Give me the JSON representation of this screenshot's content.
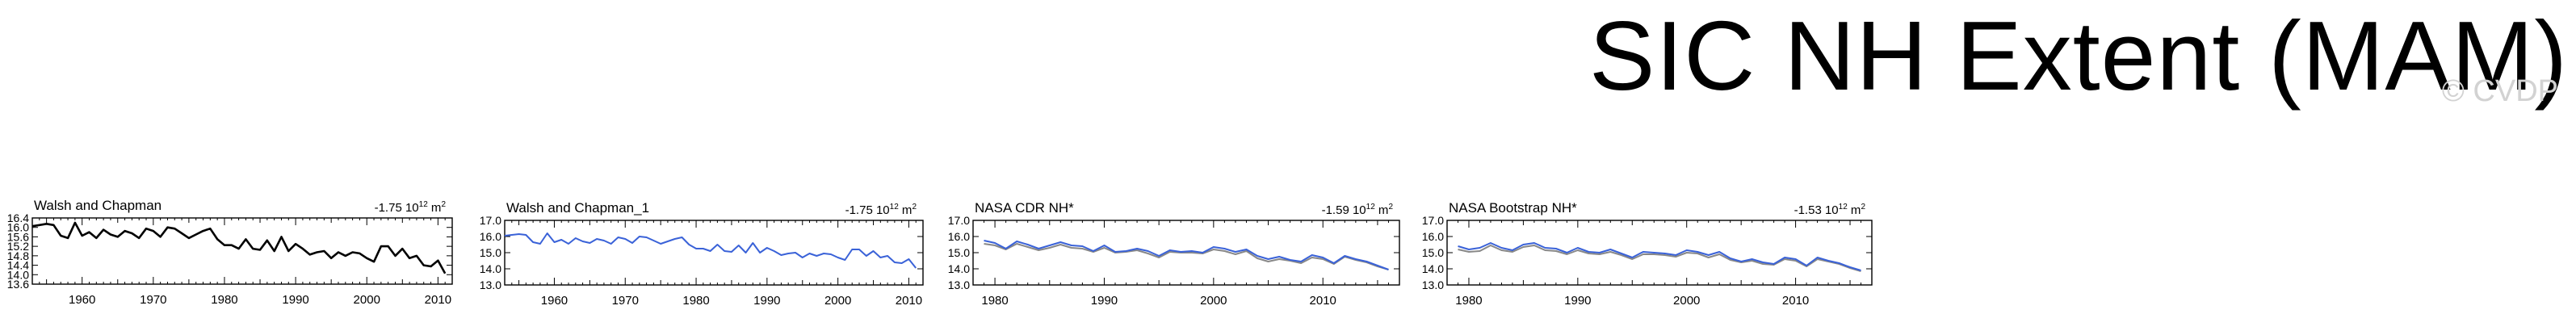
{
  "title": "SIC NH Extent (MAM)",
  "watermark": "© CVDP",
  "colors": {
    "reference": "#000000",
    "primary": "#3a62d8",
    "secondary": "#888888"
  },
  "chart_data": [
    {
      "type": "line",
      "panel_title": "Walsh and Chapman",
      "trend_value": "-1.75",
      "trend_unit": "10",
      "trend_exp": "12",
      "trend_unit_suffix": "m",
      "trend_unit_exp": "2",
      "xlim": [
        1953,
        2012
      ],
      "ylim": [
        13.6,
        16.4
      ],
      "xticks": [
        1960,
        1970,
        1980,
        1990,
        2000,
        2010
      ],
      "yticks": [
        "13.6",
        "14.0",
        "14.4",
        "14.8",
        "15.2",
        "15.6",
        "16.0",
        "16.4"
      ],
      "series": [
        {
          "color": "#000000",
          "x": [
            1953,
            1954,
            1955,
            1956,
            1957,
            1958,
            1959,
            1960,
            1961,
            1962,
            1963,
            1964,
            1965,
            1966,
            1967,
            1968,
            1969,
            1970,
            1971,
            1972,
            1973,
            1974,
            1975,
            1976,
            1977,
            1978,
            1979,
            1980,
            1981,
            1982,
            1983,
            1984,
            1985,
            1986,
            1987,
            1988,
            1989,
            1990,
            1991,
            1992,
            1993,
            1994,
            1995,
            1996,
            1997,
            1998,
            1999,
            2000,
            2001,
            2002,
            2003,
            2004,
            2005,
            2006,
            2007,
            2008,
            2009,
            2010,
            2011
          ],
          "values": [
            16.05,
            16.1,
            16.15,
            16.1,
            15.65,
            15.55,
            16.2,
            15.65,
            15.8,
            15.55,
            15.9,
            15.7,
            15.6,
            15.85,
            15.75,
            15.55,
            15.95,
            15.85,
            15.6,
            16.0,
            15.95,
            15.75,
            15.55,
            15.7,
            15.85,
            15.95,
            15.5,
            15.25,
            15.25,
            15.1,
            15.5,
            15.1,
            15.05,
            15.45,
            15.0,
            15.6,
            15.0,
            15.3,
            15.1,
            14.85,
            14.95,
            15.0,
            14.7,
            14.95,
            14.8,
            14.95,
            14.9,
            14.7,
            14.55,
            15.2,
            15.2,
            14.8,
            15.1,
            14.7,
            14.8,
            14.4,
            14.35,
            14.6,
            14.05
          ]
        }
      ]
    },
    {
      "type": "line",
      "panel_title": "Walsh and Chapman_1",
      "trend_value": "-1.75",
      "trend_unit": "10",
      "trend_exp": "12",
      "trend_unit_suffix": "m",
      "trend_unit_exp": "2",
      "xlim": [
        1953,
        2012
      ],
      "ylim": [
        13.0,
        17.0
      ],
      "xticks": [
        1960,
        1970,
        1980,
        1990,
        2000,
        2010
      ],
      "yticks": [
        "13.0",
        "14.0",
        "15.0",
        "16.0",
        "17.0"
      ],
      "series": [
        {
          "color": "#3a62d8",
          "x": [
            1953,
            1954,
            1955,
            1956,
            1957,
            1958,
            1959,
            1960,
            1961,
            1962,
            1963,
            1964,
            1965,
            1966,
            1967,
            1968,
            1969,
            1970,
            1971,
            1972,
            1973,
            1974,
            1975,
            1976,
            1977,
            1978,
            1979,
            1980,
            1981,
            1982,
            1983,
            1984,
            1985,
            1986,
            1987,
            1988,
            1989,
            1990,
            1991,
            1992,
            1993,
            1994,
            1995,
            1996,
            1997,
            1998,
            1999,
            2000,
            2001,
            2002,
            2003,
            2004,
            2005,
            2006,
            2007,
            2008,
            2009,
            2010,
            2011
          ],
          "values": [
            16.05,
            16.1,
            16.15,
            16.1,
            15.65,
            15.55,
            16.2,
            15.65,
            15.8,
            15.55,
            15.9,
            15.7,
            15.6,
            15.85,
            15.75,
            15.55,
            15.95,
            15.85,
            15.6,
            16.0,
            15.95,
            15.75,
            15.55,
            15.7,
            15.85,
            15.95,
            15.5,
            15.25,
            15.25,
            15.1,
            15.5,
            15.1,
            15.05,
            15.45,
            15.0,
            15.6,
            15.0,
            15.3,
            15.1,
            14.85,
            14.95,
            15.0,
            14.7,
            14.95,
            14.8,
            14.95,
            14.9,
            14.7,
            14.55,
            15.2,
            15.2,
            14.8,
            15.1,
            14.7,
            14.8,
            14.4,
            14.35,
            14.6,
            14.05
          ]
        }
      ]
    },
    {
      "type": "line",
      "panel_title": "NASA CDR NH*",
      "trend_value": "-1.59",
      "trend_unit": "10",
      "trend_exp": "12",
      "trend_unit_suffix": "m",
      "trend_unit_exp": "2",
      "xlim": [
        1978,
        2017
      ],
      "ylim": [
        13.0,
        17.0
      ],
      "xticks": [
        1980,
        1990,
        2000,
        2010
      ],
      "yticks": [
        "13.0",
        "14.0",
        "15.0",
        "16.0",
        "17.0"
      ],
      "series": [
        {
          "color": "#888888",
          "x": [
            1979,
            1980,
            1981,
            1982,
            1983,
            1984,
            1985,
            1986,
            1987,
            1988,
            1989,
            1990,
            1991,
            1992,
            1993,
            1994,
            1995,
            1996,
            1997,
            1998,
            1999,
            2000,
            2001,
            2002,
            2003,
            2004,
            2005,
            2006,
            2007,
            2008,
            2009,
            2010,
            2011,
            2012,
            2013,
            2014,
            2015,
            2016
          ],
          "values": [
            15.55,
            15.45,
            15.2,
            15.55,
            15.35,
            15.15,
            15.3,
            15.5,
            15.3,
            15.25,
            15.05,
            15.3,
            15.0,
            15.05,
            15.15,
            14.95,
            14.7,
            15.05,
            15.0,
            15.0,
            14.95,
            15.2,
            15.1,
            14.9,
            15.1,
            14.65,
            14.45,
            14.6,
            14.5,
            14.35,
            14.7,
            14.6,
            14.3,
            14.75,
            14.55,
            14.4,
            14.15,
            13.95
          ]
        },
        {
          "color": "#3a62d8",
          "x": [
            1979,
            1980,
            1981,
            1982,
            1983,
            1984,
            1985,
            1986,
            1987,
            1988,
            1989,
            1990,
            1991,
            1992,
            1993,
            1994,
            1995,
            1996,
            1997,
            1998,
            1999,
            2000,
            2001,
            2002,
            2003,
            2004,
            2005,
            2006,
            2007,
            2008,
            2009,
            2010,
            2011,
            2012,
            2013,
            2014,
            2015,
            2016
          ],
          "values": [
            15.75,
            15.6,
            15.25,
            15.7,
            15.5,
            15.25,
            15.45,
            15.65,
            15.45,
            15.4,
            15.1,
            15.45,
            15.05,
            15.1,
            15.25,
            15.1,
            14.8,
            15.15,
            15.05,
            15.1,
            15.0,
            15.35,
            15.25,
            15.05,
            15.2,
            14.8,
            14.6,
            14.75,
            14.55,
            14.45,
            14.85,
            14.7,
            14.35,
            14.8,
            14.6,
            14.45,
            14.2,
            13.95
          ]
        }
      ]
    },
    {
      "type": "line",
      "panel_title": "NASA Bootstrap NH*",
      "trend_value": "-1.53",
      "trend_unit": "10",
      "trend_exp": "12",
      "trend_unit_suffix": "m",
      "trend_unit_exp": "2",
      "xlim": [
        1978,
        2017
      ],
      "ylim": [
        13.0,
        17.0
      ],
      "xticks": [
        1980,
        1990,
        2000,
        2010
      ],
      "yticks": [
        "13.0",
        "14.0",
        "15.0",
        "16.0",
        "17.0"
      ],
      "series": [
        {
          "color": "#888888",
          "x": [
            1979,
            1980,
            1981,
            1982,
            1983,
            1984,
            1985,
            1986,
            1987,
            1988,
            1989,
            1990,
            1991,
            1992,
            1993,
            1994,
            1995,
            1996,
            1997,
            1998,
            1999,
            2000,
            2001,
            2002,
            2003,
            2004,
            2005,
            2006,
            2007,
            2008,
            2009,
            2010,
            2011,
            2012,
            2013,
            2014,
            2015,
            2016
          ],
          "values": [
            15.2,
            15.05,
            15.1,
            15.45,
            15.15,
            15.05,
            15.35,
            15.45,
            15.15,
            15.1,
            14.9,
            15.15,
            14.95,
            14.9,
            15.05,
            14.85,
            14.6,
            14.9,
            14.9,
            14.85,
            14.75,
            15.0,
            14.95,
            14.7,
            14.9,
            14.55,
            14.4,
            14.5,
            14.3,
            14.25,
            14.6,
            14.5,
            14.15,
            14.6,
            14.45,
            14.3,
            14.05,
            13.85
          ]
        },
        {
          "color": "#3a62d8",
          "x": [
            1979,
            1980,
            1981,
            1982,
            1983,
            1984,
            1985,
            1986,
            1987,
            1988,
            1989,
            1990,
            1991,
            1992,
            1993,
            1994,
            1995,
            1996,
            1997,
            1998,
            1999,
            2000,
            2001,
            2002,
            2003,
            2004,
            2005,
            2006,
            2007,
            2008,
            2009,
            2010,
            2011,
            2012,
            2013,
            2014,
            2015,
            2016
          ],
          "values": [
            15.4,
            15.2,
            15.3,
            15.6,
            15.3,
            15.15,
            15.5,
            15.6,
            15.3,
            15.25,
            15.0,
            15.3,
            15.05,
            15.0,
            15.2,
            14.95,
            14.7,
            15.05,
            15.0,
            14.95,
            14.85,
            15.15,
            15.05,
            14.85,
            15.05,
            14.65,
            14.45,
            14.6,
            14.4,
            14.3,
            14.7,
            14.6,
            14.2,
            14.7,
            14.5,
            14.35,
            14.1,
            13.9
          ]
        }
      ]
    }
  ]
}
